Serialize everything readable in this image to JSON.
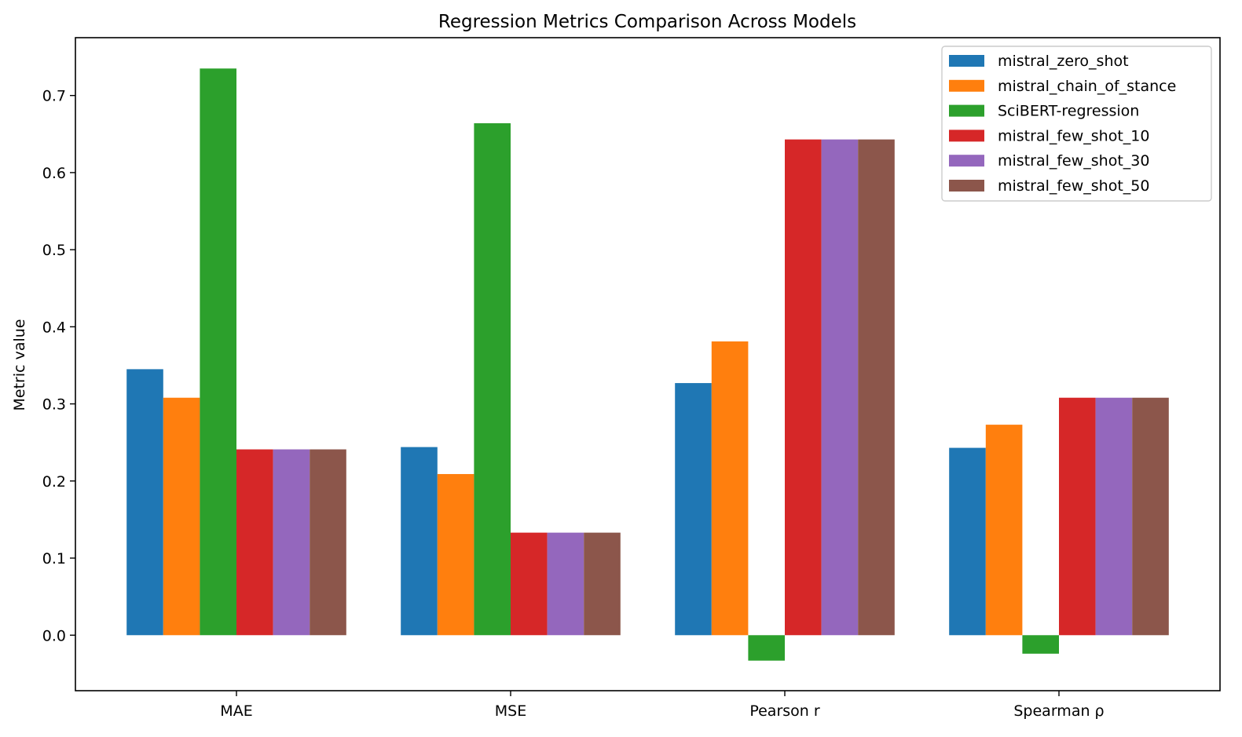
{
  "chart_data": {
    "type": "bar",
    "title": "Regression Metrics Comparison Across Models",
    "xlabel": "",
    "ylabel": "Metric value",
    "categories": [
      "MAE",
      "MSE",
      "Pearson r",
      "Spearman ρ"
    ],
    "ylim": [
      -0.072,
      0.775
    ],
    "yticks": [
      "0.0",
      "0.1",
      "0.2",
      "0.3",
      "0.4",
      "0.5",
      "0.6",
      "0.7"
    ],
    "grid": false,
    "legend_position": "top-right",
    "series": [
      {
        "name": "mistral_zero_shot",
        "color": "#1f77b4",
        "values": [
          0.345,
          0.244,
          0.327,
          0.243
        ]
      },
      {
        "name": "mistral_chain_of_stance",
        "color": "#ff7f0e",
        "values": [
          0.308,
          0.209,
          0.381,
          0.273
        ]
      },
      {
        "name": "SciBERT-regression",
        "color": "#2ca02c",
        "values": [
          0.735,
          0.664,
          -0.033,
          -0.024
        ]
      },
      {
        "name": "mistral_few_shot_10",
        "color": "#d62728",
        "values": [
          0.241,
          0.133,
          0.643,
          0.308
        ]
      },
      {
        "name": "mistral_few_shot_30",
        "color": "#9467bd",
        "values": [
          0.241,
          0.133,
          0.643,
          0.308
        ]
      },
      {
        "name": "mistral_few_shot_50",
        "color": "#8c564b",
        "values": [
          0.241,
          0.133,
          0.643,
          0.308
        ]
      }
    ]
  }
}
